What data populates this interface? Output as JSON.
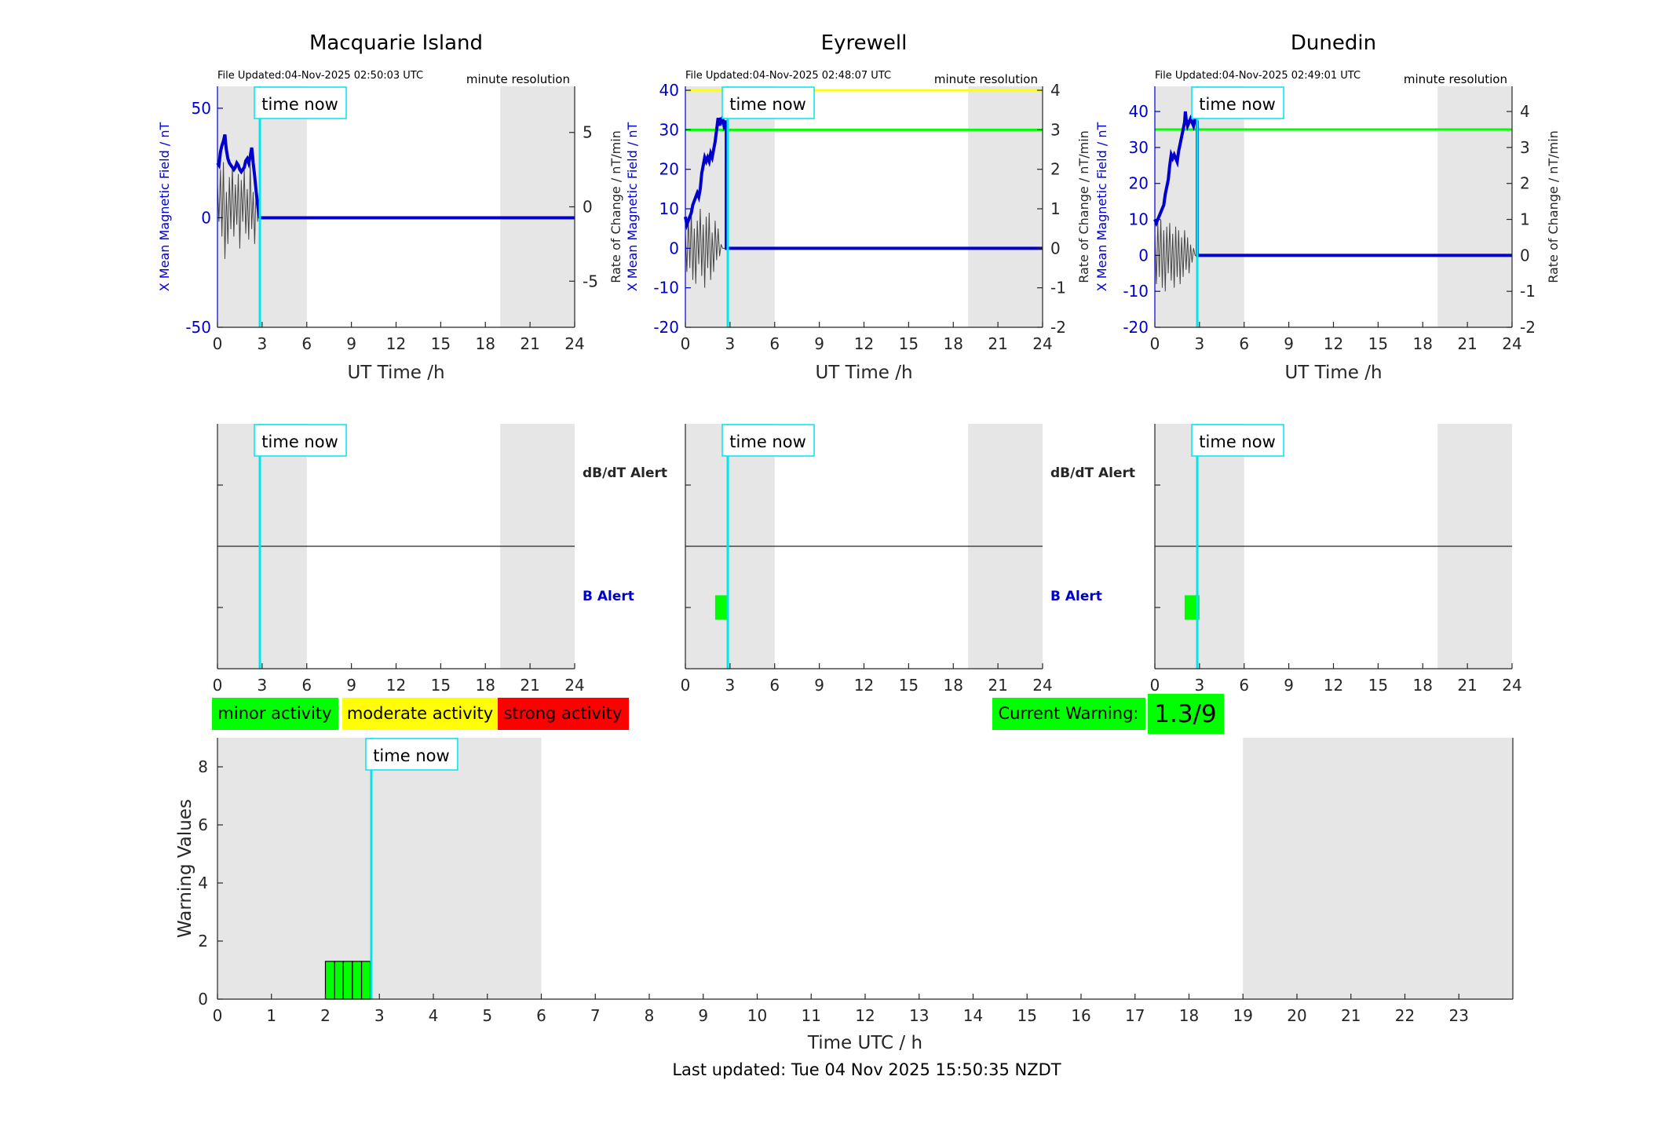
{
  "legend": {
    "minor": "minor activity",
    "moderate": "moderate activity",
    "strong": "strong activity"
  },
  "current_warning": {
    "label": "Current Warning:",
    "value": "1.3/9"
  },
  "time_now_label": "time now",
  "footer": "Last updated: Tue 04 Nov 2025 15:50:35 NZDT",
  "colors": {
    "b_field": "#0000cc",
    "rate": "#444444",
    "time_now": "#00e5ee",
    "night_shade": "#e6e6e6",
    "minor": "#00ff00",
    "moderate": "#ffff00",
    "strong": "#ff0000"
  },
  "chart_data": [
    {
      "type": "line",
      "title": "Macquarie Island",
      "file_updated": "File Updated:04-Nov-2025 02:50:03 UTC",
      "resolution": "minute resolution",
      "xlabel": "UT Time /h",
      "ylabel_left": "X Mean Magnetic Field / nT",
      "ylabel_right": "Rate of Change / nT/min",
      "xlim": [
        0,
        24
      ],
      "xticks": [
        0,
        3,
        6,
        9,
        12,
        15,
        18,
        21,
        24
      ],
      "ylim_left": [
        -50,
        60
      ],
      "yticks_left": [
        -50,
        0,
        50
      ],
      "ylim_right": [
        -8.1,
        8.1
      ],
      "yticks_right": [
        -5,
        0,
        5
      ],
      "time_now": 2.85,
      "night_shading": [
        [
          0,
          6
        ],
        [
          19,
          24
        ]
      ],
      "thresholds": [],
      "series_b": [
        [
          0,
          25
        ],
        [
          0.1,
          24
        ],
        [
          0.2,
          30
        ],
        [
          0.3,
          33
        ],
        [
          0.4,
          35
        ],
        [
          0.5,
          38
        ],
        [
          0.55,
          34
        ],
        [
          0.6,
          31
        ],
        [
          0.7,
          27
        ],
        [
          0.8,
          25
        ],
        [
          0.9,
          24
        ],
        [
          1.0,
          23
        ],
        [
          1.1,
          22
        ],
        [
          1.2,
          23
        ],
        [
          1.3,
          25
        ],
        [
          1.4,
          24
        ],
        [
          1.5,
          22
        ],
        [
          1.6,
          21
        ],
        [
          1.7,
          22
        ],
        [
          1.8,
          23
        ],
        [
          1.9,
          26
        ],
        [
          2.0,
          27
        ],
        [
          2.1,
          25
        ],
        [
          2.2,
          28
        ],
        [
          2.3,
          32
        ],
        [
          2.35,
          29
        ],
        [
          2.4,
          25
        ],
        [
          2.5,
          19
        ],
        [
          2.6,
          12
        ],
        [
          2.7,
          6
        ],
        [
          2.8,
          1
        ],
        [
          2.85,
          0
        ],
        [
          24,
          0
        ]
      ],
      "series_rate": [
        [
          0,
          1.5
        ],
        [
          0.1,
          -1.0
        ],
        [
          0.2,
          2.5
        ],
        [
          0.3,
          -2.0
        ],
        [
          0.4,
          3.0
        ],
        [
          0.5,
          -3.5
        ],
        [
          0.6,
          1.0
        ],
        [
          0.7,
          -2.5
        ],
        [
          0.8,
          2.0
        ],
        [
          0.9,
          -1.5
        ],
        [
          1.0,
          2.8
        ],
        [
          1.1,
          -2.0
        ],
        [
          1.2,
          1.5
        ],
        [
          1.3,
          -1.2
        ],
        [
          1.4,
          2.2
        ],
        [
          1.5,
          -2.8
        ],
        [
          1.6,
          1.8
        ],
        [
          1.7,
          -1.0
        ],
        [
          1.8,
          2.5
        ],
        [
          1.9,
          -1.8
        ],
        [
          2.0,
          1.2
        ],
        [
          2.1,
          -2.2
        ],
        [
          2.2,
          2.9
        ],
        [
          2.3,
          -1.5
        ],
        [
          2.4,
          1.0
        ],
        [
          2.5,
          -2.5
        ],
        [
          2.6,
          1.5
        ],
        [
          2.7,
          -1.0
        ],
        [
          2.8,
          0.5
        ],
        [
          2.85,
          0
        ]
      ]
    },
    {
      "type": "line",
      "title": "Eyrewell",
      "file_updated": "File Updated:04-Nov-2025 02:48:07 UTC",
      "resolution": "minute resolution",
      "xlabel": "UT Time /h",
      "ylabel_left": "X Mean Magnetic Field / nT",
      "ylabel_right": "Rate of Change / nT/min",
      "xlim": [
        0,
        24
      ],
      "xticks": [
        0,
        3,
        6,
        9,
        12,
        15,
        18,
        21,
        24
      ],
      "ylim_left": [
        -20,
        41
      ],
      "yticks_left": [
        -20,
        -10,
        0,
        10,
        20,
        30,
        40
      ],
      "ylim_right": [
        -2,
        4.1
      ],
      "yticks_right": [
        -2,
        -1,
        0,
        1,
        2,
        3,
        4
      ],
      "time_now": 2.85,
      "night_shading": [
        [
          0,
          6
        ],
        [
          19,
          24
        ]
      ],
      "thresholds": [
        {
          "value": 40,
          "color": "#ffff00"
        },
        {
          "value": 30,
          "color": "#00ff00"
        }
      ],
      "series_b": [
        [
          0,
          8
        ],
        [
          0.1,
          6
        ],
        [
          0.2,
          7
        ],
        [
          0.3,
          8
        ],
        [
          0.4,
          9
        ],
        [
          0.5,
          11
        ],
        [
          0.6,
          12
        ],
        [
          0.7,
          13
        ],
        [
          0.8,
          14
        ],
        [
          0.9,
          13
        ],
        [
          1.0,
          15
        ],
        [
          1.1,
          19
        ],
        [
          1.2,
          21
        ],
        [
          1.3,
          23
        ],
        [
          1.4,
          22
        ],
        [
          1.5,
          23
        ],
        [
          1.6,
          22
        ],
        [
          1.7,
          24
        ],
        [
          1.8,
          23
        ],
        [
          1.9,
          25
        ],
        [
          2.0,
          27
        ],
        [
          2.1,
          30
        ],
        [
          2.2,
          33
        ],
        [
          2.25,
          31
        ],
        [
          2.3,
          33
        ],
        [
          2.4,
          32
        ],
        [
          2.5,
          33
        ],
        [
          2.6,
          31
        ],
        [
          2.7,
          32
        ],
        [
          2.75,
          32
        ],
        [
          2.75,
          0
        ],
        [
          24,
          0
        ]
      ],
      "series_rate": [
        [
          0,
          0.4
        ],
        [
          0.1,
          -0.6
        ],
        [
          0.2,
          0.8
        ],
        [
          0.3,
          -0.5
        ],
        [
          0.4,
          0.9
        ],
        [
          0.5,
          -0.8
        ],
        [
          0.6,
          0.5
        ],
        [
          0.7,
          -0.9
        ],
        [
          0.8,
          0.7
        ],
        [
          0.9,
          -0.4
        ],
        [
          1.0,
          1.0
        ],
        [
          1.1,
          -0.7
        ],
        [
          1.2,
          0.6
        ],
        [
          1.3,
          -1.0
        ],
        [
          1.4,
          0.8
        ],
        [
          1.5,
          -0.5
        ],
        [
          1.6,
          0.9
        ],
        [
          1.7,
          -0.8
        ],
        [
          1.8,
          0.4
        ],
        [
          1.9,
          -0.6
        ],
        [
          2.0,
          0.7
        ],
        [
          2.1,
          -0.3
        ],
        [
          2.2,
          0.5
        ],
        [
          2.3,
          -0.2
        ],
        [
          2.4,
          0.1
        ],
        [
          2.5,
          0
        ],
        [
          2.75,
          0
        ]
      ]
    },
    {
      "type": "line",
      "title": "Dunedin",
      "file_updated": "File Updated:04-Nov-2025 02:49:01 UTC",
      "resolution": "minute resolution",
      "xlabel": "UT Time /h",
      "ylabel_left": "X Mean Magnetic Field / nT",
      "ylabel_right": "Rate of Change / nT/min",
      "xlim": [
        0,
        24
      ],
      "xticks": [
        0,
        3,
        6,
        9,
        12,
        15,
        18,
        21,
        24
      ],
      "ylim_left": [
        -20,
        47
      ],
      "yticks_left": [
        -20,
        -10,
        0,
        10,
        20,
        30,
        40
      ],
      "ylim_right": [
        -2,
        4.7
      ],
      "yticks_right": [
        -2,
        -1,
        0,
        1,
        2,
        3,
        4
      ],
      "time_now": 2.85,
      "night_shading": [
        [
          0,
          6
        ],
        [
          19,
          24
        ]
      ],
      "thresholds": [
        {
          "value": 35,
          "color": "#00ff00"
        }
      ],
      "series_b": [
        [
          0,
          10
        ],
        [
          0.1,
          9
        ],
        [
          0.2,
          10
        ],
        [
          0.3,
          11
        ],
        [
          0.4,
          12
        ],
        [
          0.5,
          13
        ],
        [
          0.6,
          14
        ],
        [
          0.7,
          17
        ],
        [
          0.8,
          19
        ],
        [
          0.9,
          21
        ],
        [
          1.0,
          25
        ],
        [
          1.1,
          28
        ],
        [
          1.2,
          27
        ],
        [
          1.3,
          28
        ],
        [
          1.4,
          27
        ],
        [
          1.5,
          26
        ],
        [
          1.6,
          29
        ],
        [
          1.7,
          31
        ],
        [
          1.8,
          33
        ],
        [
          1.9,
          35
        ],
        [
          2.0,
          37
        ],
        [
          2.05,
          40
        ],
        [
          2.1,
          38
        ],
        [
          2.2,
          36
        ],
        [
          2.3,
          37
        ],
        [
          2.4,
          38
        ],
        [
          2.5,
          37
        ],
        [
          2.6,
          36
        ],
        [
          2.7,
          38
        ],
        [
          2.8,
          37
        ],
        [
          2.85,
          37
        ],
        [
          2.85,
          0
        ],
        [
          24,
          0
        ]
      ],
      "series_rate": [
        [
          0,
          0.6
        ],
        [
          0.1,
          -0.8
        ],
        [
          0.2,
          0.9
        ],
        [
          0.3,
          -0.6
        ],
        [
          0.4,
          1.0
        ],
        [
          0.5,
          -0.9
        ],
        [
          0.6,
          0.7
        ],
        [
          0.7,
          -1.0
        ],
        [
          0.8,
          0.8
        ],
        [
          0.9,
          -0.5
        ],
        [
          1.0,
          0.9
        ],
        [
          1.1,
          -0.7
        ],
        [
          1.2,
          0.6
        ],
        [
          1.3,
          -0.9
        ],
        [
          1.4,
          0.8
        ],
        [
          1.5,
          -0.6
        ],
        [
          1.6,
          0.7
        ],
        [
          1.7,
          -0.8
        ],
        [
          1.8,
          0.5
        ],
        [
          1.9,
          -0.6
        ],
        [
          2.0,
          0.7
        ],
        [
          2.1,
          -0.4
        ],
        [
          2.2,
          0.5
        ],
        [
          2.3,
          -0.5
        ],
        [
          2.4,
          0.3
        ],
        [
          2.5,
          -0.2
        ],
        [
          2.6,
          0.2
        ],
        [
          2.7,
          0
        ],
        [
          2.85,
          0
        ]
      ]
    },
    {
      "type": "bar",
      "title": "",
      "labels": {
        "top": "dB/dT Alert",
        "bottom": "B Alert"
      },
      "xlim": [
        0,
        24
      ],
      "xticks": [
        0,
        3,
        6,
        9,
        12,
        15,
        18,
        21,
        24
      ],
      "time_now": 2.85,
      "night_shading": [
        [
          0,
          6
        ],
        [
          19,
          24
        ]
      ],
      "alerts_b": []
    },
    {
      "type": "bar",
      "title": "",
      "labels": {
        "top": "dB/dT Alert",
        "bottom": "B Alert"
      },
      "xlim": [
        0,
        24
      ],
      "xticks": [
        0,
        3,
        6,
        9,
        12,
        15,
        18,
        21,
        24
      ],
      "time_now": 2.85,
      "night_shading": [
        [
          0,
          6
        ],
        [
          19,
          24
        ]
      ],
      "alerts_b": [
        {
          "start": 2.0,
          "end": 2.85,
          "level": "minor"
        }
      ]
    },
    {
      "type": "bar",
      "title": "",
      "labels": {
        "top": "",
        "bottom": ""
      },
      "xlim": [
        0,
        24
      ],
      "xticks": [
        0,
        3,
        6,
        9,
        12,
        15,
        18,
        21,
        24
      ],
      "time_now": 2.85,
      "night_shading": [
        [
          0,
          6
        ],
        [
          19,
          24
        ]
      ],
      "alerts_b": [
        {
          "start": 2.0,
          "end": 3.0,
          "level": "minor"
        }
      ]
    },
    {
      "type": "bar",
      "title": "",
      "xlabel": "Time UTC / h",
      "ylabel": "Warning Values",
      "xlim": [
        0,
        24
      ],
      "xticks": [
        0,
        1,
        2,
        3,
        4,
        5,
        6,
        7,
        8,
        9,
        10,
        11,
        12,
        13,
        14,
        15,
        16,
        17,
        18,
        19,
        20,
        21,
        22,
        23
      ],
      "ylim": [
        0,
        9
      ],
      "yticks": [
        0,
        2,
        4,
        6,
        8
      ],
      "time_now": 2.85,
      "night_shading": [
        [
          0,
          6
        ],
        [
          19,
          24
        ]
      ],
      "bars": [
        {
          "start": 2.0,
          "end": 2.17,
          "value": 1.3
        },
        {
          "start": 2.17,
          "end": 2.33,
          "value": 1.3
        },
        {
          "start": 2.33,
          "end": 2.5,
          "value": 1.3
        },
        {
          "start": 2.5,
          "end": 2.67,
          "value": 1.3
        },
        {
          "start": 2.67,
          "end": 2.83,
          "value": 1.3
        }
      ]
    }
  ]
}
